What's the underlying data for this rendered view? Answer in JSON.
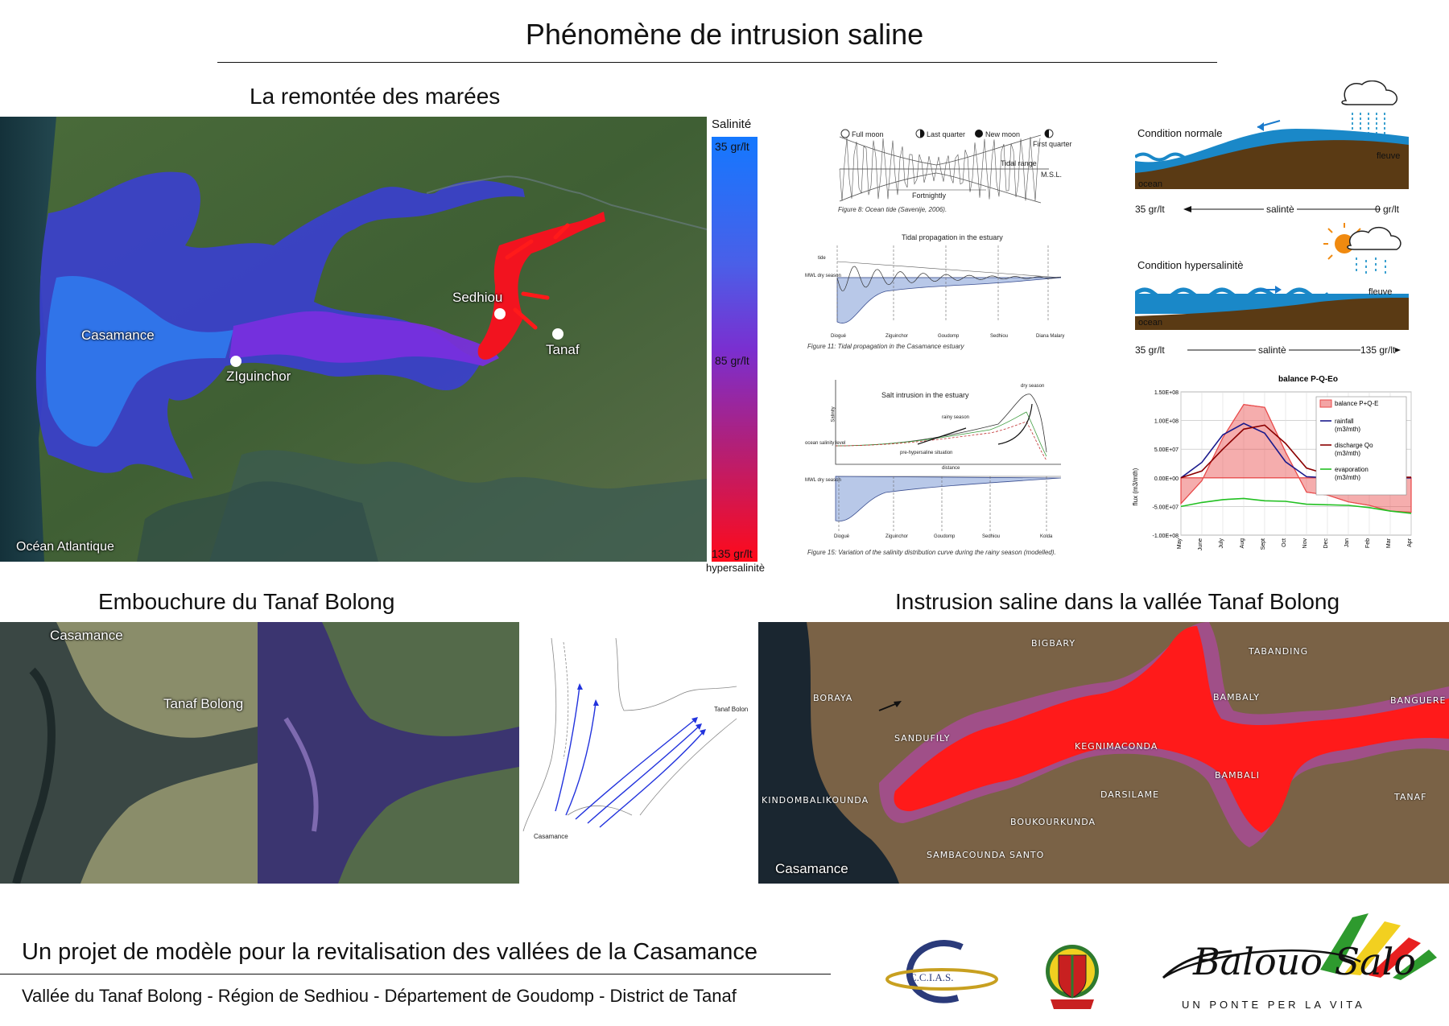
{
  "title": "Phénomène de intrusion saline",
  "sections": {
    "tides": "La remontée des marées",
    "mouth": "Embouchure du Tanaf Bolong",
    "valley": "Instrusion saline dans la vallée Tanaf Bolong"
  },
  "salinity_map": {
    "labels": {
      "casamance": "Casamance",
      "ziguinchor": "ZIguinchor",
      "sedhiou": "Sedhiou",
      "tanaf": "Tanaf",
      "ocean": "Océan Atlantique"
    },
    "legend": {
      "title": "Salinité",
      "top": "35 gr/lt",
      "middle": "85 gr/lt",
      "bottom": "135 gr/lt",
      "note": "hypersalinitè",
      "color_top": "#1478ff",
      "color_mid": "#7a2fd0",
      "color_bottom": "#ff0a1a"
    }
  },
  "figures": {
    "ocean_tide": {
      "full_moon": "Full moon",
      "last_quarter": "Last quarter",
      "new_moon": "New moon",
      "first_quarter": "First quarter",
      "tidal_range": "Tidal range",
      "msl": "M.S.L.",
      "fortnightly": "Fortnightly",
      "caption": "Figure 8: Ocean tide (Savenije, 2006)."
    },
    "tidal_propagation": {
      "title": "Tidal propagation in the estuary",
      "tide": "tide",
      "mwl": "MWL dry season",
      "stations": [
        "Diogué",
        "Ziguinchor",
        "Goudomp",
        "Sedhiou",
        "Diana Malary"
      ],
      "caption": "Figure 11: Tidal propagation in the Casamance estuary"
    },
    "salt_intrusion": {
      "title": "Salt intrusion in the estuary",
      "dry_season": "dry season",
      "rainy_season": "rainy season",
      "ocean_level": "ocean salinity level",
      "pre_hyper": "pre-hypersaline situation",
      "distance": "distance",
      "salinity": "Salinity",
      "mwl": "MWL dry season",
      "stations": [
        "Diogué",
        "Ziguinchor",
        "Goudomp",
        "Sedhiou",
        "Kolda"
      ],
      "caption": "Figure 15: Variation of the salinity distribution curve during the rainy season (modelled)."
    }
  },
  "conditions": {
    "normal": {
      "title": "Condition normale",
      "fleuve": "fleuve",
      "ocean": "ocean",
      "left": "35 gr/lt",
      "middle": "salintè",
      "right": "0 gr/lt"
    },
    "hyper": {
      "title": "Condition hypersalinitè",
      "fleuve": "fleuve",
      "ocean": "ocean",
      "left": "35 gr/lt",
      "middle": "salintè",
      "right": "135 gr/lt"
    }
  },
  "chart_data": {
    "type": "line",
    "title": "balance P-Q-Eo",
    "ylabel": "flux (m3/mth)",
    "categories": [
      "May",
      "June",
      "July",
      "Aug",
      "Sept",
      "Oct",
      "Nov",
      "Dec",
      "Jan",
      "Feb",
      "Mar",
      "Apr"
    ],
    "ylim": [
      -100000000,
      150000000
    ],
    "yticks": [
      "-1.00E+08",
      "-5.00E+07",
      "0.00E+00",
      "5.00E+07",
      "1.00E+08",
      "1.50E+08"
    ],
    "ytick_values": [
      -100000000,
      -50000000,
      0,
      50000000,
      100000000,
      150000000
    ],
    "grid": true,
    "legend_position": "top-right",
    "series": [
      {
        "name": "balance P+Q-E",
        "kind": "area",
        "color": "#e84a4a",
        "values": [
          -45000000,
          -5000000,
          70000000,
          128000000,
          123000000,
          45000000,
          -25000000,
          -30000000,
          -42000000,
          -48000000,
          -58000000,
          -60000000
        ]
      },
      {
        "name": "rainfall (m3/mth)",
        "kind": "line",
        "color": "#1a1a8c",
        "values": [
          0,
          27000000,
          75000000,
          95000000,
          78000000,
          28000000,
          2000000,
          0,
          0,
          0,
          0,
          0
        ]
      },
      {
        "name": "discharge Qo (m3/mth)",
        "kind": "line",
        "color": "#8b0000",
        "values": [
          0,
          12000000,
          50000000,
          85000000,
          92000000,
          60000000,
          17000000,
          6000000,
          4000000,
          2000000,
          1000000,
          1000000
        ]
      },
      {
        "name": "evaporation (m3/mth)",
        "kind": "line",
        "color": "#22c022",
        "values": [
          -50000000,
          -43000000,
          -38000000,
          -36000000,
          -40000000,
          -41000000,
          -46000000,
          -47000000,
          -48000000,
          -52000000,
          -58000000,
          -62000000
        ]
      }
    ]
  },
  "mouth_images": {
    "casamance": "Casamance",
    "tanaf_bolong": "Tanaf Bolong",
    "sketch_tanaf": "Tanaf Bolon",
    "sketch_casamance": "Casamance"
  },
  "valley_map": {
    "labels": [
      "BIGBARY",
      "TABANDING",
      "BORAYA",
      "BAMBALY",
      "BANGUERE",
      "SANDUFILY",
      "KEGNIMACONDA",
      "BAMBALI",
      "KINDOMBALIKOUNDA",
      "DARSILAME",
      "TANAF",
      "BOUKOURKUNDA",
      "SAMBACOUNDA SANTO"
    ],
    "casamance": "Casamance"
  },
  "footer": {
    "project": "Un projet de modèle pour la revitalisation des vallées de la Casamance",
    "location": "Vallée du Tanaf Bolong - Région de Sedhiou -  Département de Goudomp - District de Tanaf",
    "logo_ccias": "C.C.I.A.S.",
    "logo_balouo": "Balouo Salo",
    "logo_tagline": "UN PONTE PER LA VITA"
  }
}
